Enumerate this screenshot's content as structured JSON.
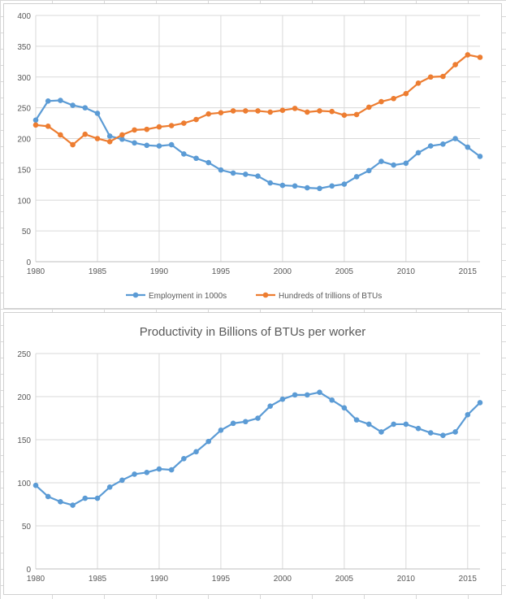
{
  "chart_data": [
    {
      "type": "line",
      "title": "",
      "xlabel": "",
      "ylabel": "",
      "x": [
        1980,
        1981,
        1982,
        1983,
        1984,
        1985,
        1986,
        1987,
        1988,
        1989,
        1990,
        1991,
        1992,
        1993,
        1994,
        1995,
        1996,
        1997,
        1998,
        1999,
        2000,
        2001,
        2002,
        2003,
        2004,
        2005,
        2006,
        2007,
        2008,
        2009,
        2010,
        2011,
        2012,
        2013,
        2014,
        2015,
        2016
      ],
      "xlim": [
        1980,
        2016
      ],
      "xticks": [
        "1980",
        "1985",
        "1990",
        "1995",
        "2000",
        "2005",
        "2010",
        "2015"
      ],
      "ylim": [
        0,
        400
      ],
      "yticks": [
        "0",
        "50",
        "100",
        "150",
        "200",
        "250",
        "300",
        "350",
        "400"
      ],
      "grid": true,
      "legend": "bottom",
      "series": [
        {
          "name": "Employment in 1000s",
          "color": "#5b9bd5",
          "values": [
            230,
            261,
            262,
            254,
            250,
            241,
            204,
            199,
            193,
            189,
            188,
            190,
            175,
            168,
            161,
            149,
            144,
            142,
            139,
            128,
            124,
            123,
            120,
            119,
            123,
            126,
            138,
            148,
            163,
            157,
            160,
            177,
            188,
            191,
            200,
            186,
            171
          ]
        },
        {
          "name": "Hundreds of trillions of BTUs",
          "color": "#ed7d31",
          "values": [
            222,
            220,
            206,
            190,
            207,
            200,
            195,
            206,
            214,
            215,
            219,
            221,
            225,
            231,
            240,
            242,
            245,
            245,
            245,
            243,
            246,
            249,
            243,
            245,
            244,
            238,
            239,
            251,
            260,
            265,
            273,
            290,
            300,
            301,
            320,
            336,
            332
          ]
        }
      ]
    },
    {
      "type": "line",
      "title": "Productivity in Billions of BTUs per worker",
      "xlabel": "",
      "ylabel": "",
      "x": [
        1980,
        1981,
        1982,
        1983,
        1984,
        1985,
        1986,
        1987,
        1988,
        1989,
        1990,
        1991,
        1992,
        1993,
        1994,
        1995,
        1996,
        1997,
        1998,
        1999,
        2000,
        2001,
        2002,
        2003,
        2004,
        2005,
        2006,
        2007,
        2008,
        2009,
        2010,
        2011,
        2012,
        2013,
        2014,
        2015,
        2016
      ],
      "xlim": [
        1980,
        2016
      ],
      "xticks": [
        "1980",
        "1985",
        "1990",
        "1995",
        "2000",
        "2005",
        "2010",
        "2015"
      ],
      "ylim": [
        0,
        250
      ],
      "yticks": [
        "0",
        "50",
        "100",
        "150",
        "200",
        "250"
      ],
      "grid": true,
      "legend": "none",
      "series": [
        {
          "color": "#5b9bd5",
          "values": [
            97,
            84,
            78,
            74,
            82,
            82,
            95,
            103,
            110,
            112,
            116,
            115,
            128,
            136,
            148,
            161,
            169,
            171,
            175,
            189,
            197,
            202,
            202,
            205,
            196,
            187,
            173,
            168,
            159,
            168,
            168,
            163,
            158,
            155,
            159,
            179,
            193
          ]
        }
      ]
    }
  ]
}
